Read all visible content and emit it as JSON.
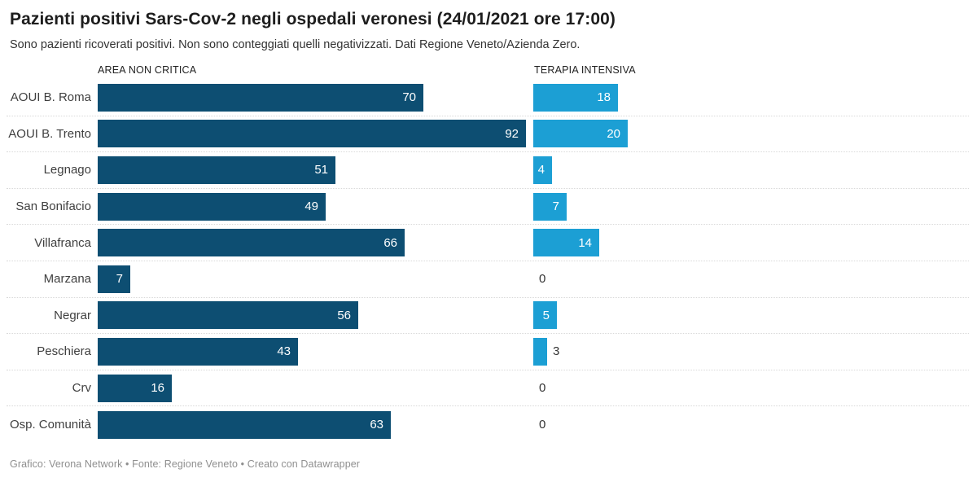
{
  "header": {
    "title": "Pazienti positivi Sars-Cov-2 negli ospedali veronesi (24/01/2021 ore 17:00)",
    "subtitle": "Sono pazienti ricoverati positivi. Non sono conteggiati quelli negativizzati. Dati Regione Veneto/Azienda Zero."
  },
  "footer": {
    "text": "Grafico: Verona Network • Fonte: Regione Veneto • Creato con Datawrapper"
  },
  "colors": {
    "area_non_critica": "#0d4e72",
    "terapia_intensiva": "#1c9fd4",
    "separator": "#d9d9d9",
    "value_outside_text": "#333333",
    "value_inside_text": "#ffffff"
  },
  "chart_data": {
    "type": "bar",
    "orientation": "horizontal",
    "title": "Pazienti positivi Sars-Cov-2 negli ospedali veronesi (24/01/2021 ore 17:00)",
    "subtitle": "Sono pazienti ricoverati positivi. Non sono conteggiati quelli negativizzati. Dati Regione Veneto/Azienda Zero.",
    "attribution": "Grafico: Verona Network • Fonte: Regione Veneto • Creato con Datawrapper",
    "categories": [
      "AOUI B. Roma",
      "AOUI B. Trento",
      "Legnago",
      "San Bonifacio",
      "Villafranca",
      "Marzana",
      "Negrar",
      "Peschiera",
      "Crv",
      "Osp. Comunità"
    ],
    "series": [
      {
        "name": "AREA NON CRITICA",
        "color": "#0d4e72",
        "values": [
          70,
          92,
          51,
          49,
          66,
          7,
          56,
          43,
          16,
          63
        ],
        "axis_max": 92
      },
      {
        "name": "TERAPIA INTENSIVA",
        "color": "#1c9fd4",
        "values": [
          18,
          20,
          4,
          7,
          14,
          0,
          5,
          3,
          0,
          0
        ],
        "axis_max": 20
      }
    ],
    "value_labels": "shown at end of each bar; inside bar in white when bar is wide enough, otherwise outside in dark gray",
    "grid": "dotted row separators only",
    "legend_position": "column headers above each bar group"
  }
}
